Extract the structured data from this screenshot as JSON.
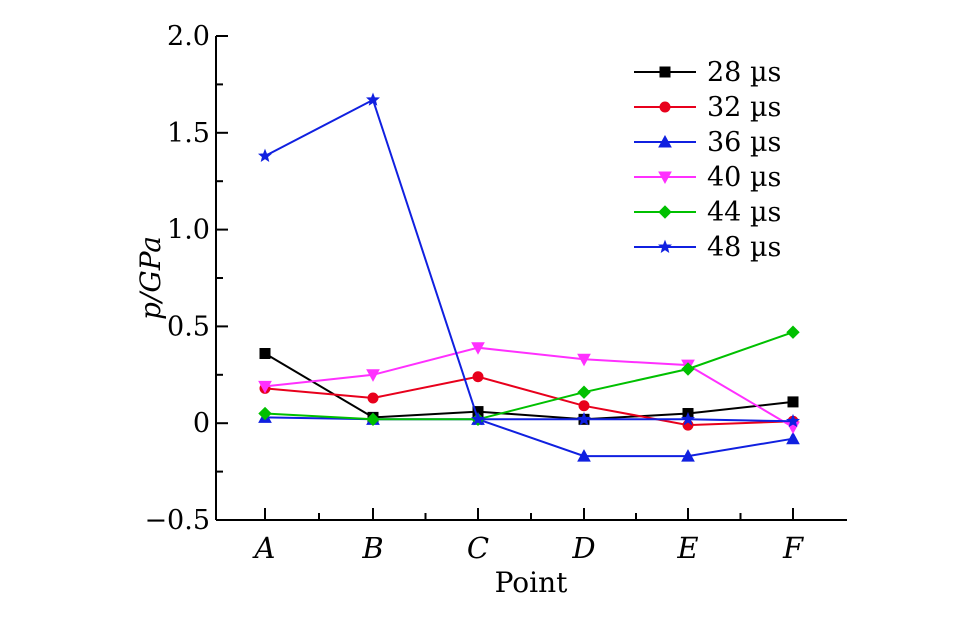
{
  "chart_data": {
    "type": "line",
    "categories": [
      "A",
      "B",
      "C",
      "D",
      "E",
      "F"
    ],
    "xlabel": "Point",
    "ylabel": "p/GPa",
    "ylim": [
      -0.5,
      2.0
    ],
    "yticks": [
      -0.5,
      0,
      0.5,
      1.0,
      1.5,
      2.0
    ],
    "ytick_labels": [
      "−0.5",
      "0",
      "0.5",
      "1.0",
      "1.5",
      "2.0"
    ],
    "grid": false,
    "legend_position": "top-right",
    "series": [
      {
        "name": "28 µs",
        "color": "#000000",
        "marker": "square",
        "values": [
          0.36,
          0.03,
          0.06,
          0.02,
          0.05,
          0.11
        ]
      },
      {
        "name": "32 µs",
        "color": "#e8001c",
        "marker": "circle",
        "values": [
          0.18,
          0.13,
          0.24,
          0.09,
          -0.01,
          0.01
        ]
      },
      {
        "name": "36 µs",
        "color": "#1020e0",
        "marker": "triangle-up",
        "values": [
          0.03,
          0.02,
          0.02,
          -0.17,
          -0.17,
          -0.08
        ]
      },
      {
        "name": "40 µs",
        "color": "#ff30ff",
        "marker": "triangle-down",
        "values": [
          0.19,
          0.25,
          0.39,
          0.33,
          0.3,
          -0.02
        ]
      },
      {
        "name": "44 µs",
        "color": "#00c000",
        "marker": "diamond",
        "values": [
          0.05,
          0.02,
          0.02,
          0.16,
          0.28,
          0.47
        ]
      },
      {
        "name": "48 µs",
        "color": "#1020e0",
        "marker": "star",
        "values": [
          1.38,
          1.67,
          0.02,
          0.02,
          0.02,
          0.01
        ]
      }
    ]
  }
}
